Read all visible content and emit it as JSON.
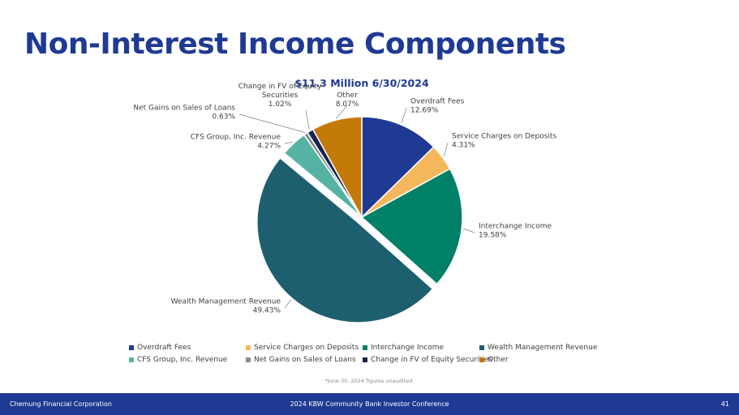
{
  "page": {
    "title": "Non-Interest Income Components",
    "footnote": "*June 30, 2024 figures unaudited."
  },
  "footer": {
    "left": "Chemung Financial Corporation",
    "center": "2024 KBW Community Bank Investor Conference",
    "page_number": "41"
  },
  "chart_data": {
    "type": "pie",
    "title": "$11.3 Million 6/30/2024",
    "slices": [
      {
        "name": "Overdraft Fees",
        "label": "12.69%",
        "value": 12.69,
        "color": "#1f3a93"
      },
      {
        "name": "Service Charges on Deposits",
        "label": "4.31%",
        "value": 4.31,
        "color": "#f5b75c"
      },
      {
        "name": "Interchange Income",
        "label": "19.58%",
        "value": 19.58,
        "color": "#008066"
      },
      {
        "name": "Wealth Management Revenue",
        "label": "49.43%",
        "value": 49.43,
        "color": "#1d5f6e"
      },
      {
        "name": "CFS Group, Inc. Revenue",
        "label": "4.27%",
        "value": 4.27,
        "color": "#55b3a4"
      },
      {
        "name": "Net Gains on Sales of Loans",
        "label": "0.63%",
        "value": 0.63,
        "color": "#8c8c8c"
      },
      {
        "name": "Change in FV of Equity Securities",
        "label": "1.02%",
        "value": 1.02,
        "color": "#15254f"
      },
      {
        "name": "Other",
        "label": "8.07%",
        "value": 8.07,
        "color": "#c47a08"
      }
    ],
    "callout_lines": [
      [
        "Overdraft Fees",
        "12.69%"
      ],
      [
        "Service Charges on Deposits",
        "4.31%"
      ],
      [
        "Interchange Income",
        "19.58%"
      ],
      [
        "Wealth Management Revenue",
        "49.43%"
      ],
      [
        "CFS Group, Inc. Revenue",
        "4.27%"
      ],
      [
        "Net Gains on Sales of Loans",
        "0.63%"
      ],
      [
        "Change in FV of Equity",
        "Securities",
        "1.02%"
      ],
      [
        "Other",
        "8.07%"
      ]
    ],
    "legend_position": "bottom"
  }
}
